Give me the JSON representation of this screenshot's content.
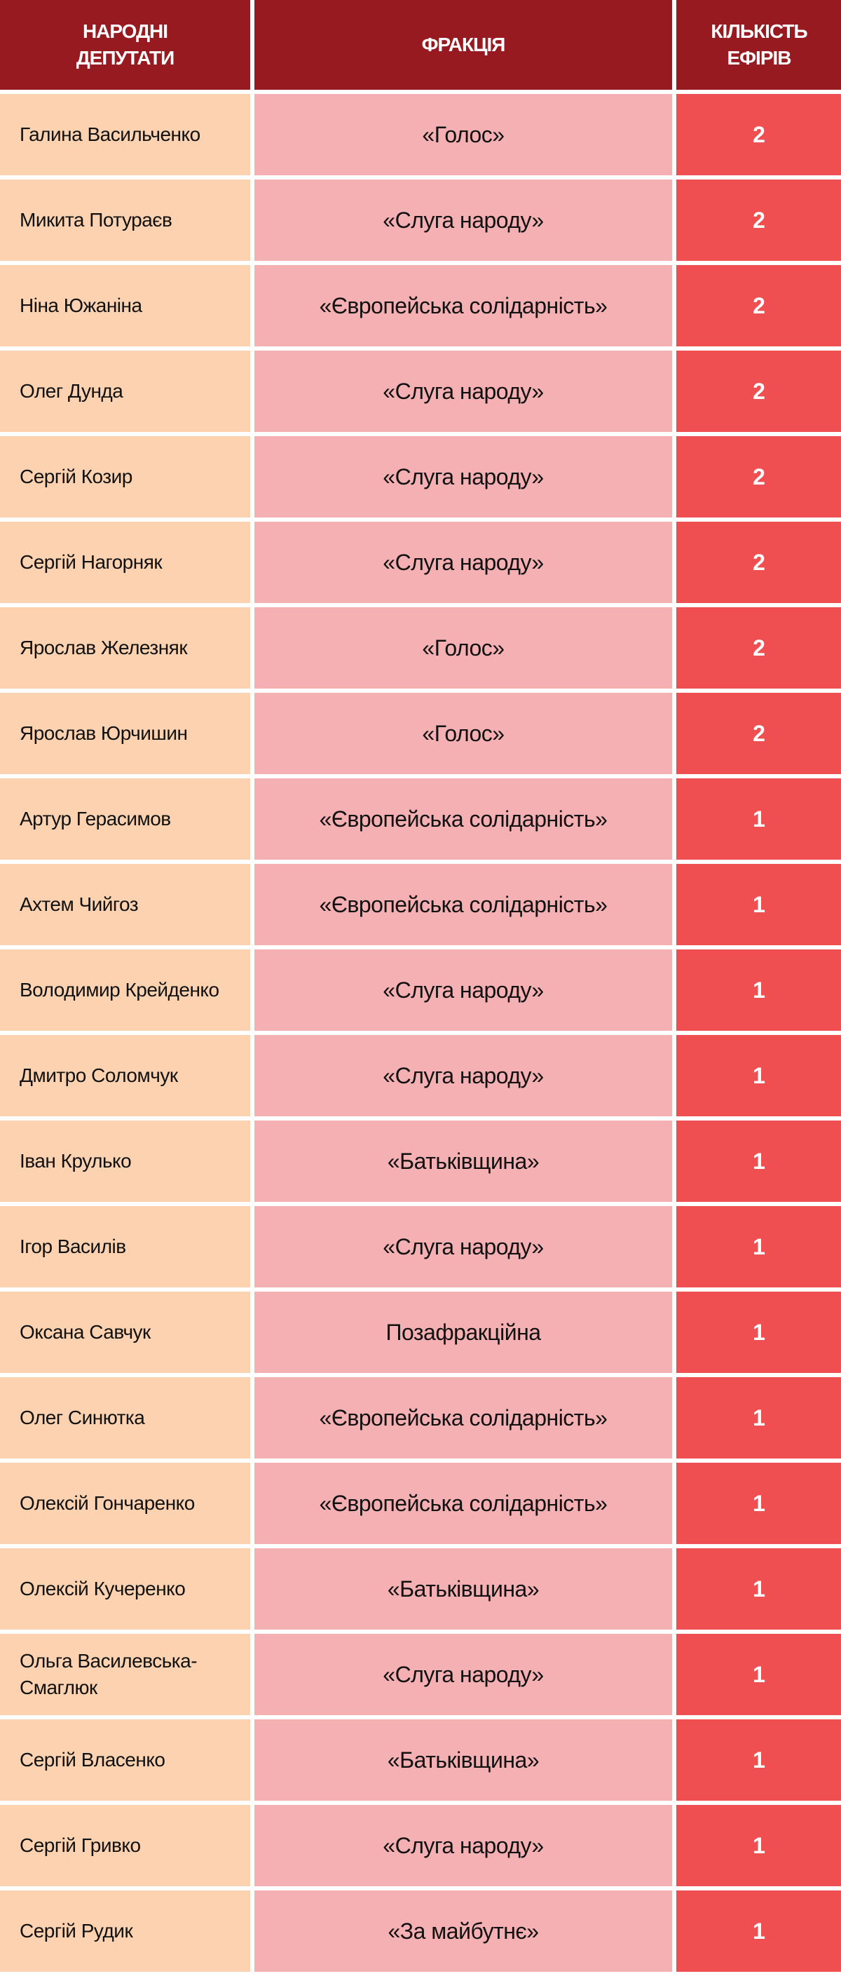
{
  "colors": {
    "header": "#961a1f",
    "name_cell": "#fcd2b0",
    "faction_cell": "#f5b0b3",
    "count_cell": "#ef4f51"
  },
  "headers": {
    "deputies": "НАРОДНІ ДЕПУТАТИ",
    "faction": "ФРАКЦІЯ",
    "count": "КІЛЬКІСТЬ ЕФІРІВ"
  },
  "rows": [
    {
      "name": "Галина Васильченко",
      "faction": "«Голос»",
      "count": "2"
    },
    {
      "name": "Микита Потураєв",
      "faction": "«Слуга народу»",
      "count": "2"
    },
    {
      "name": "Ніна Южаніна",
      "faction": "«Європейська солідарність»",
      "count": "2"
    },
    {
      "name": "Олег Дунда",
      "faction": "«Слуга народу»",
      "count": "2"
    },
    {
      "name": "Сергій Козир",
      "faction": "«Слуга народу»",
      "count": "2"
    },
    {
      "name": "Сергій Нагорняк",
      "faction": "«Слуга народу»",
      "count": "2"
    },
    {
      "name": "Ярослав Железняк",
      "faction": "«Голос»",
      "count": "2"
    },
    {
      "name": "Ярослав Юрчишин",
      "faction": "«Голос»",
      "count": "2"
    },
    {
      "name": "Артур Герасимов",
      "faction": "«Європейська солідарність»",
      "count": "1"
    },
    {
      "name": "Ахтем Чийгоз",
      "faction": "«Європейська солідарність»",
      "count": "1"
    },
    {
      "name": "Володимир Крейденко",
      "faction": "«Слуга народу»",
      "count": "1"
    },
    {
      "name": "Дмитро Соломчук",
      "faction": "«Слуга народу»",
      "count": "1"
    },
    {
      "name": "Іван Крулько",
      "faction": "«Батьківщина»",
      "count": "1"
    },
    {
      "name": "Ігор Василів",
      "faction": "«Слуга народу»",
      "count": "1"
    },
    {
      "name": "Оксана Савчук",
      "faction": "Позафракційна",
      "count": "1"
    },
    {
      "name": "Олег Синютка",
      "faction": "«Європейська солідарність»",
      "count": "1"
    },
    {
      "name": "Олексій Гончаренко",
      "faction": "«Європейська солідарність»",
      "count": "1"
    },
    {
      "name": "Олексій Кучеренко",
      "faction": "«Батьківщина»",
      "count": "1"
    },
    {
      "name": "Ольга Василевська-Смаглюк",
      "faction": "«Слуга народу»",
      "count": "1"
    },
    {
      "name": "Сергій Власенко",
      "faction": "«Батьківщина»",
      "count": "1"
    },
    {
      "name": "Сергій Гривко",
      "faction": "«Слуга народу»",
      "count": "1"
    },
    {
      "name": "Сергій Рудик",
      "faction": "«За майбутнє»",
      "count": "1"
    }
  ]
}
